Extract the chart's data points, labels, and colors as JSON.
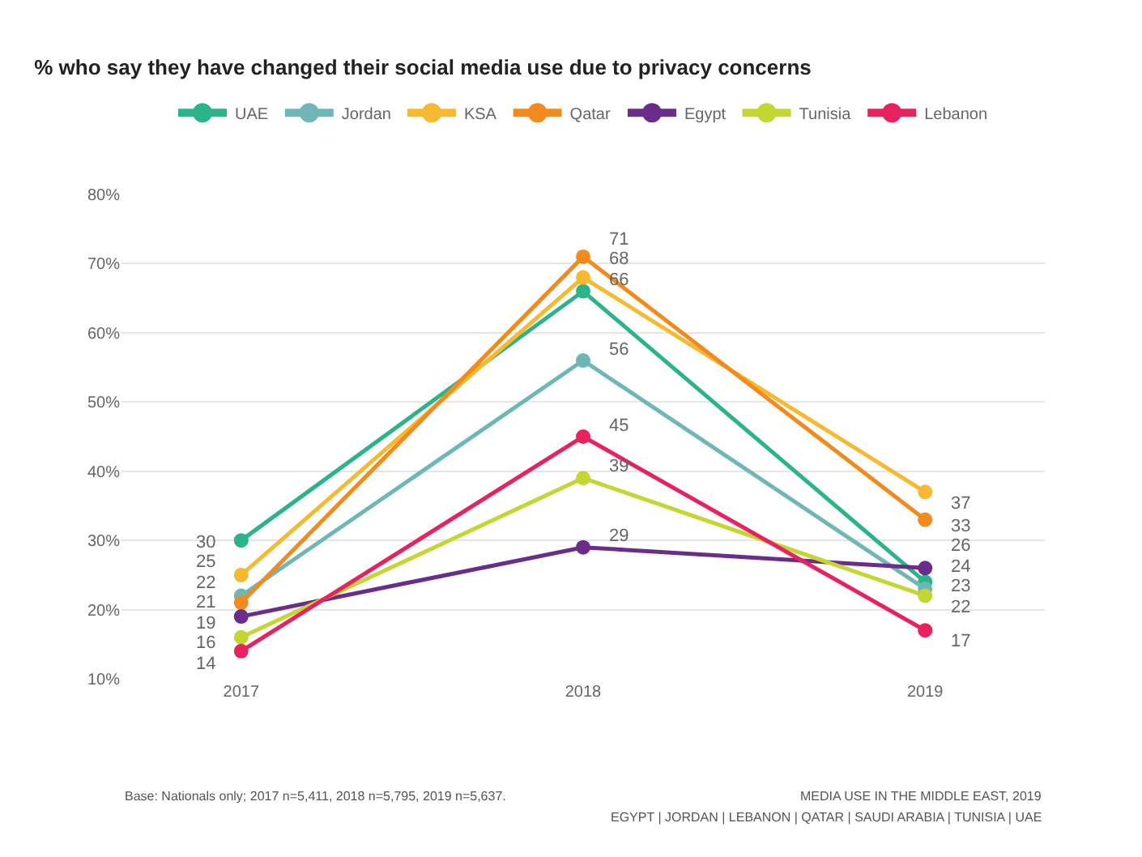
{
  "chart_data": {
    "type": "line",
    "title": "% who say they have changed their social media use due to privacy concerns",
    "categories": [
      "2017",
      "2018",
      "2019"
    ],
    "series": [
      {
        "name": "UAE",
        "color": "#2bb38a",
        "values": [
          30,
          66,
          24
        ]
      },
      {
        "name": "Jordan",
        "color": "#6fb7b7",
        "values": [
          22,
          56,
          23
        ]
      },
      {
        "name": "KSA",
        "color": "#f7b92f",
        "values": [
          25,
          68,
          37
        ]
      },
      {
        "name": "Qatar",
        "color": "#f28a1e",
        "values": [
          21,
          71,
          33
        ]
      },
      {
        "name": "Egypt",
        "color": "#6b2d8a",
        "values": [
          19,
          29,
          26
        ]
      },
      {
        "name": "Tunisia",
        "color": "#c3d631",
        "values": [
          16,
          39,
          22
        ]
      },
      {
        "name": "Lebanon",
        "color": "#e8215f",
        "values": [
          14,
          45,
          17
        ]
      }
    ],
    "ylim": [
      10,
      80
    ],
    "yticks": [
      {
        "value": 10,
        "label": "10%"
      },
      {
        "value": 20,
        "label": "20%"
      },
      {
        "value": 30,
        "label": "30%"
      },
      {
        "value": 40,
        "label": "40%"
      },
      {
        "value": 50,
        "label": "50%"
      },
      {
        "value": 60,
        "label": "60%"
      },
      {
        "value": 70,
        "label": "70%"
      },
      {
        "value": 80,
        "label": "80%"
      }
    ],
    "grid": "y",
    "legend": "top",
    "marker": "circle",
    "line_style": "solid",
    "data_labels": true,
    "annotations": [
      "Base: Nationals only; 2017 n=5,411, 2018 n=5,795, 2019 n=5,637.",
      "MEDIA USE IN THE MIDDLE EAST, 2019",
      "EGYPT | JORDAN | LEBANON | QATAR | SAUDI ARABIA | TUNISIA | UAE"
    ]
  }
}
